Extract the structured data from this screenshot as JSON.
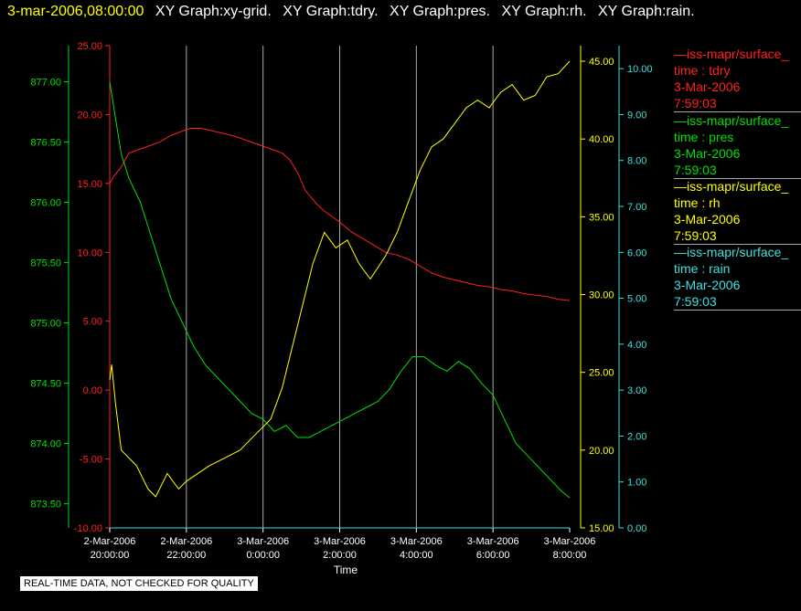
{
  "header": {
    "timestamp": "3-mar-2006,08:00:00",
    "graphs": [
      "XY Graph:xy-grid.",
      "XY Graph:tdry.",
      "XY Graph:pres.",
      "XY Graph:rh.",
      "XY Graph:rain."
    ]
  },
  "legend": [
    {
      "source": "iss-mapr/surface_",
      "var": "time : tdry",
      "date": "3-Mar-2006",
      "time": "7:59:03",
      "color": "#ff2020"
    },
    {
      "source": "iss-mapr/surface_",
      "var": "time : pres",
      "date": "3-Mar-2006",
      "time": "7:59:03",
      "color": "#00e000"
    },
    {
      "source": "iss-mapr/surface_",
      "var": "time : rh",
      "date": "3-Mar-2006",
      "time": "7:59:03",
      "color": "#ffff00"
    },
    {
      "source": "iss-mapr/surface_",
      "var": "time : rain",
      "date": "3-Mar-2006",
      "time": "7:59:03",
      "color": "#40e0e0"
    }
  ],
  "disclaimer": "REAL-TIME DATA, NOT CHECKED FOR QUALITY",
  "chart_data": {
    "type": "line",
    "xlabel": "Time",
    "x_ticks": [
      {
        "date": "2-Mar-2006",
        "time": "20:00:00"
      },
      {
        "date": "2-Mar-2006",
        "time": "22:00:00"
      },
      {
        "date": "3-Mar-2006",
        "time": "0:00:00"
      },
      {
        "date": "3-Mar-2006",
        "time": "2:00:00"
      },
      {
        "date": "3-Mar-2006",
        "time": "4:00:00"
      },
      {
        "date": "3-Mar-2006",
        "time": "6:00:00"
      },
      {
        "date": "3-Mar-2006",
        "time": "8:00:00"
      }
    ],
    "xlim": [
      "2-Mar-2006 20:00:00",
      "3-Mar-2006 8:00:00"
    ],
    "grid": "vertical",
    "axes": [
      {
        "id": "tdry",
        "color": "#ff2020",
        "ylim": [
          -10,
          25
        ],
        "ticks": [
          "-10.00",
          "-5.00",
          "0.00",
          "5.00",
          "10.00",
          "15.00",
          "20.00",
          "25.00"
        ]
      },
      {
        "id": "pres",
        "color": "#00e000",
        "ylim": [
          873.3,
          877.3
        ],
        "ticks": [
          "873.50",
          "874.00",
          "874.50",
          "875.00",
          "875.50",
          "876.00",
          "876.50",
          "877.00"
        ]
      },
      {
        "id": "rh",
        "color": "#ffff00",
        "ylim": [
          15,
          46
        ],
        "ticks": [
          "15.00",
          "20.00",
          "25.00",
          "30.00",
          "35.00",
          "40.00",
          "45.00"
        ]
      },
      {
        "id": "rain",
        "color": "#40e0e0",
        "ylim": [
          0,
          10.5
        ],
        "ticks": [
          "0.00",
          "1.00",
          "2.00",
          "3.00",
          "4.00",
          "5.00",
          "6.00",
          "7.00",
          "8.00",
          "9.00",
          "10.00"
        ]
      }
    ],
    "series": [
      {
        "axis": "tdry",
        "color": "#ff2020",
        "x": [
          0,
          0.1,
          0.3,
          0.5,
          0.8,
          1.0,
          1.3,
          1.6,
          1.9,
          2.1,
          2.4,
          2.7,
          3.0,
          3.3,
          3.6,
          3.9,
          4.2,
          4.5,
          4.7,
          4.9,
          5.1,
          5.4,
          5.6,
          5.8,
          6.0,
          6.3,
          6.6,
          6.9,
          7.2,
          7.5,
          7.8,
          8.1,
          8.4,
          8.7,
          9.0,
          9.3,
          9.6,
          9.9,
          10.2,
          10.5,
          10.8,
          11.1,
          11.4,
          11.7,
          12.0
        ],
        "values": [
          15.0,
          15.5,
          16.2,
          17.2,
          17.5,
          17.7,
          18.0,
          18.5,
          18.8,
          19.0,
          19.0,
          18.8,
          18.6,
          18.4,
          18.1,
          17.8,
          17.5,
          17.2,
          16.7,
          15.8,
          14.5,
          13.5,
          13.0,
          12.6,
          12.2,
          11.5,
          11.0,
          10.5,
          10.0,
          9.8,
          9.5,
          9.0,
          8.5,
          8.2,
          8.0,
          7.8,
          7.6,
          7.5,
          7.3,
          7.2,
          7.0,
          6.9,
          6.8,
          6.6,
          6.5
        ]
      },
      {
        "axis": "pres",
        "color": "#00e000",
        "x": [
          0,
          0.05,
          0.15,
          0.3,
          0.5,
          0.8,
          1.0,
          1.3,
          1.6,
          1.9,
          2.2,
          2.5,
          2.8,
          3.1,
          3.4,
          3.7,
          4.0,
          4.3,
          4.6,
          4.9,
          5.2,
          5.5,
          5.8,
          6.1,
          6.4,
          6.7,
          7.0,
          7.3,
          7.6,
          7.9,
          8.2,
          8.5,
          8.8,
          9.1,
          9.4,
          9.7,
          10.0,
          10.3,
          10.6,
          10.9,
          11.2,
          11.5,
          11.8,
          12.0
        ],
        "values": [
          877.0,
          876.9,
          876.7,
          876.4,
          876.2,
          876.0,
          875.8,
          875.5,
          875.2,
          875.0,
          874.8,
          874.65,
          874.55,
          874.45,
          874.35,
          874.25,
          874.2,
          874.1,
          874.15,
          874.05,
          874.05,
          874.1,
          874.15,
          874.2,
          874.25,
          874.3,
          874.35,
          874.45,
          874.6,
          874.72,
          874.72,
          874.65,
          874.6,
          874.68,
          874.62,
          874.5,
          874.4,
          874.2,
          874.0,
          873.9,
          873.8,
          873.7,
          873.6,
          873.55
        ]
      },
      {
        "axis": "rh",
        "color": "#ffff00",
        "x": [
          0,
          0.05,
          0.15,
          0.3,
          0.5,
          0.7,
          1.0,
          1.2,
          1.5,
          1.8,
          2.0,
          2.3,
          2.6,
          3.0,
          3.4,
          3.8,
          4.2,
          4.5,
          4.9,
          5.3,
          5.6,
          5.9,
          6.2,
          6.5,
          6.8,
          7.2,
          7.5,
          7.8,
          8.1,
          8.4,
          8.7,
          9.0,
          9.3,
          9.6,
          9.9,
          10.2,
          10.5,
          10.8,
          11.1,
          11.4,
          11.7,
          12.0
        ],
        "values": [
          24.5,
          25.5,
          23.0,
          20.0,
          19.5,
          19.0,
          17.5,
          17.0,
          18.5,
          17.5,
          18.0,
          18.5,
          19.0,
          19.5,
          20.0,
          21.0,
          22.0,
          24.0,
          28.0,
          32.0,
          34.0,
          33.0,
          33.5,
          32.0,
          31.0,
          32.5,
          34.0,
          36.0,
          38.0,
          39.5,
          40.0,
          41.0,
          42.0,
          42.5,
          42.0,
          43.0,
          43.5,
          42.5,
          42.8,
          44.0,
          44.2,
          45.0
        ]
      },
      {
        "axis": "rain",
        "color": "#40e0e0",
        "x": [
          0,
          12.0
        ],
        "values": [
          0,
          0
        ]
      }
    ]
  }
}
